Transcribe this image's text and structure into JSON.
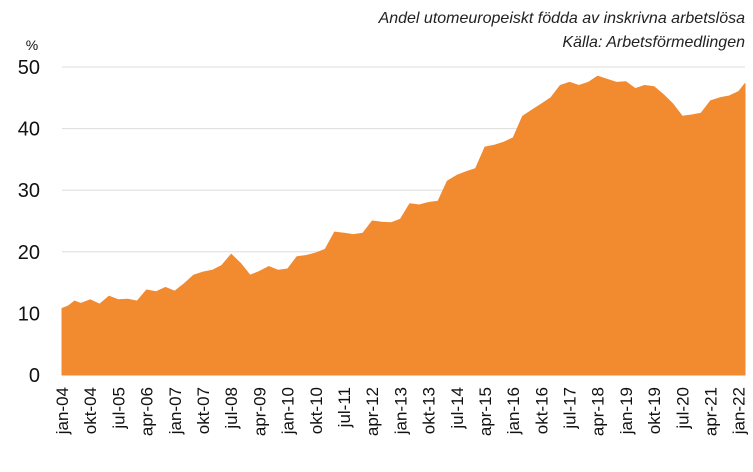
{
  "chart_data": {
    "type": "area",
    "title": "Andel utomeuropeiskt födda av inskrivna arbetslösa",
    "source": "Källa: Arbetsförmedlingen",
    "ylabel": "%",
    "ylim": [
      0,
      50
    ],
    "yticks": [
      0,
      10,
      20,
      30,
      40,
      50
    ],
    "grid": true,
    "color": "#F28A30",
    "x": [
      "2004-01",
      "2004-03",
      "2004-05",
      "2004-07",
      "2004-10",
      "2005-01",
      "2005-04",
      "2005-07",
      "2005-10",
      "2006-01",
      "2006-04",
      "2006-07",
      "2006-10",
      "2007-01",
      "2007-04",
      "2007-07",
      "2007-10",
      "2008-01",
      "2008-04",
      "2008-07",
      "2008-10",
      "2009-01",
      "2009-04",
      "2009-07",
      "2009-10",
      "2010-01",
      "2010-04",
      "2010-07",
      "2010-10",
      "2011-01",
      "2011-04",
      "2011-07",
      "2011-10",
      "2012-01",
      "2012-04",
      "2012-07",
      "2012-10",
      "2013-01",
      "2013-04",
      "2013-07",
      "2013-10",
      "2014-01",
      "2014-04",
      "2014-07",
      "2014-10",
      "2015-01",
      "2015-04",
      "2015-07",
      "2015-10",
      "2016-01",
      "2016-04",
      "2016-07",
      "2016-10",
      "2017-01",
      "2017-04",
      "2017-07",
      "2017-10",
      "2018-01",
      "2018-04",
      "2018-07",
      "2018-10",
      "2019-01",
      "2019-04",
      "2019-07",
      "2019-10",
      "2020-01",
      "2020-04",
      "2020-07",
      "2020-10",
      "2021-01",
      "2021-04",
      "2021-07",
      "2021-10",
      "2022-01",
      "2022-03"
    ],
    "values": [
      10.8,
      11.2,
      12.0,
      11.6,
      12.2,
      11.5,
      12.8,
      12.2,
      12.3,
      12.0,
      13.8,
      13.5,
      14.2,
      13.6,
      14.8,
      16.2,
      16.7,
      17.0,
      17.8,
      19.6,
      18.1,
      16.2,
      16.8,
      17.6,
      17.0,
      17.2,
      19.2,
      19.4,
      19.8,
      20.4,
      23.2,
      23.0,
      22.8,
      23.0,
      25.0,
      24.8,
      24.7,
      25.3,
      27.8,
      27.6,
      28.0,
      28.2,
      31.5,
      32.4,
      33.0,
      33.5,
      37.0,
      37.3,
      37.8,
      38.5,
      42.0,
      43.0,
      44.0,
      45.0,
      47.0,
      47.5,
      47.0,
      47.5,
      48.5,
      48.0,
      47.5,
      47.6,
      46.5,
      47.0,
      46.8,
      45.5,
      44.0,
      42.0,
      42.2,
      42.5,
      44.5,
      45.0,
      45.3,
      46.0,
      47.3
    ],
    "x_tick_labels": [
      "jan-04",
      "okt-04",
      "jul-05",
      "apr-06",
      "jan-07",
      "okt-07",
      "jul-08",
      "apr-09",
      "jan-10",
      "okt-10",
      "jul-11",
      "apr-12",
      "jan-13",
      "okt-13",
      "jul-14",
      "apr-15",
      "jan-16",
      "okt-16",
      "jul-17",
      "apr-18",
      "jan-19",
      "okt-19",
      "jul-20",
      "apr-21",
      "jan-22"
    ],
    "x_tick_positions": [
      "2004-01",
      "2004-10",
      "2005-07",
      "2006-04",
      "2007-01",
      "2007-10",
      "2008-07",
      "2009-04",
      "2010-01",
      "2010-10",
      "2011-07",
      "2012-04",
      "2013-01",
      "2013-10",
      "2014-07",
      "2015-04",
      "2016-01",
      "2016-10",
      "2017-07",
      "2018-04",
      "2019-01",
      "2019-10",
      "2020-07",
      "2021-04",
      "2022-01"
    ]
  }
}
